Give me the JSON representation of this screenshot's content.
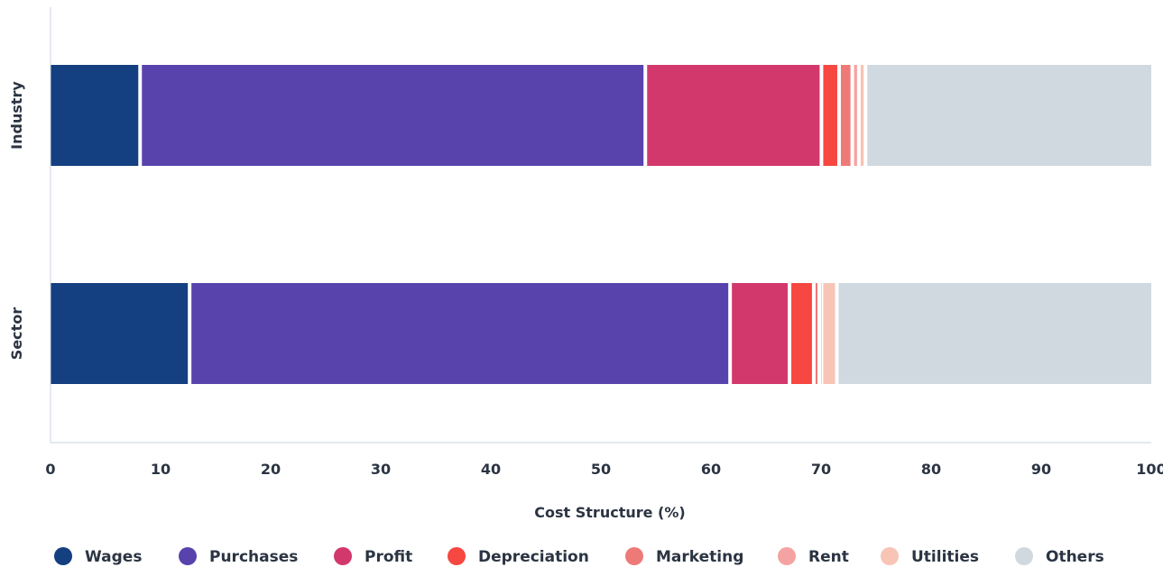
{
  "chart_data": {
    "type": "bar",
    "orientation": "horizontal",
    "stacked": true,
    "categories": [
      "Industry",
      "Sector"
    ],
    "series": [
      {
        "name": "Wages",
        "color": "#143f80",
        "values": [
          8.3,
          12.8
        ]
      },
      {
        "name": "Purchases",
        "color": "#5843ad",
        "values": [
          45.9,
          49.1
        ]
      },
      {
        "name": "Profit",
        "color": "#d2386c",
        "values": [
          16.0,
          5.4
        ]
      },
      {
        "name": "Depreciation",
        "color": "#f64740",
        "values": [
          1.6,
          2.2
        ]
      },
      {
        "name": "Marketing",
        "color": "#ee7a78",
        "values": [
          1.2,
          0.5
        ]
      },
      {
        "name": "Rent",
        "color": "#f5a3a2",
        "values": [
          0.6,
          0.2
        ]
      },
      {
        "name": "Utilities",
        "color": "#f7c4b5",
        "values": [
          0.6,
          1.4
        ]
      },
      {
        "name": "Others",
        "color": "#d0d9e0",
        "values": [
          25.8,
          28.4
        ]
      }
    ],
    "xlabel": "Cost Structure (%)",
    "ylabel": "",
    "xlim": [
      0,
      100
    ],
    "xticks": [
      0,
      10,
      20,
      30,
      40,
      50,
      60,
      70,
      80,
      90,
      100
    ],
    "grid": false,
    "legend": "bottom"
  }
}
